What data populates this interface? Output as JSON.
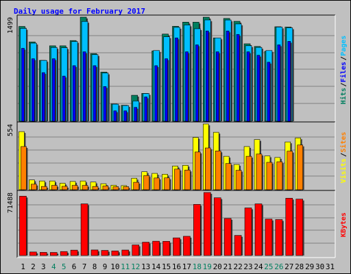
{
  "chart_data": {
    "type": "bar",
    "title": "Daily usage for February 2017",
    "categories": [
      "1",
      "2",
      "3",
      "4",
      "5",
      "6",
      "7",
      "8",
      "9",
      "10",
      "11",
      "12",
      "13",
      "14",
      "15",
      "16",
      "17",
      "18",
      "19",
      "20",
      "21",
      "22",
      "23",
      "24",
      "25",
      "26",
      "27",
      "28",
      "29",
      "30",
      "31"
    ],
    "weekend_days": [
      "4",
      "5",
      "11",
      "12",
      "18",
      "19",
      "25",
      "26"
    ],
    "colors": {
      "background": "#c0c0c0",
      "plot_background": "#c0c0c0",
      "title": "#0000ff",
      "hits": "#007f5f",
      "files": "#0000ff",
      "pages": "#00bfff",
      "visits": "#ffff00",
      "sites": "#ff8000",
      "kbytes": "#ff0000",
      "weekend_label": "#007f5f",
      "weekday_label": "#000000"
    },
    "panels": [
      {
        "id": "hits-files-pages",
        "max_label": "1499",
        "ymax": 1499,
        "legend": [
          {
            "text": "Hits",
            "color": "#007f5f"
          },
          {
            "text": "/",
            "color": "#000000"
          },
          {
            "text": "Files",
            "color": "#0000ff"
          },
          {
            "text": "/",
            "color": "#000000"
          },
          {
            "text": "Pages",
            "color": "#00bfff"
          }
        ],
        "series": [
          {
            "name": "Hits",
            "values": [
              1365,
              1142,
              877,
              1086,
              1086,
              1162,
              1499,
              974,
              708,
              249,
              230,
              374,
              401,
              1013,
              1255,
              1367,
              1427,
              1426,
              1498,
              1200,
              1480,
              1439,
              1115,
              1077,
              1007,
              1361,
              1356,
              0,
              0,
              0,
              0
            ]
          },
          {
            "name": "Files",
            "values": [
              1050,
              900,
              700,
              900,
              650,
              800,
              1000,
              800,
              500,
              150,
              150,
              200,
              350,
              800,
              900,
              1200,
              1000,
              1100,
              1300,
              1000,
              1300,
              1250,
              1000,
              950,
              850,
              1100,
              1150,
              0,
              0,
              0,
              0
            ]
          },
          {
            "name": "Pages",
            "values": [
              1337,
              1124,
              876,
              1062,
              1058,
              1148,
              1437,
              959,
              695,
              246,
              226,
              292,
              399,
              1018,
              1216,
              1352,
              1386,
              1332,
              1459,
              1200,
              1458,
              1401,
              1087,
              1063,
              1018,
              1356,
              1345,
              0,
              0,
              0,
              0
            ]
          }
        ]
      },
      {
        "id": "visits-sites",
        "max_label": "554",
        "ymax": 554,
        "legend": [
          {
            "text": "Visits",
            "color": "#ffff00"
          },
          {
            "text": "/",
            "color": "#000000"
          },
          {
            "text": "Sites",
            "color": "#ff8000"
          }
        ],
        "series": [
          {
            "name": "Visits",
            "values": [
              490,
              83,
              74,
              74,
              55,
              70,
              74,
              65,
              51,
              38,
              35,
              97,
              152,
              138,
              131,
              200,
              206,
              441,
              554,
              484,
              282,
              213,
              364,
              423,
              285,
              272,
              403,
              437,
              0,
              0,
              0
            ]
          },
          {
            "name": "Sites",
            "values": [
              364,
              47,
              28,
              37,
              29,
              37,
              37,
              28,
              32,
              26,
              26,
              63,
              120,
              99,
              100,
              174,
              166,
              318,
              352,
              327,
              221,
              164,
              282,
              301,
              231,
              236,
              325,
              377,
              0,
              0,
              0
            ]
          }
        ]
      },
      {
        "id": "kbytes",
        "max_label": "71488",
        "ymax": 71488,
        "legend": [
          {
            "text": "KBytes",
            "color": "#ff0000"
          }
        ],
        "series": [
          {
            "name": "KBytes",
            "values": [
              67296,
              3985,
              3567,
              3481,
              4504,
              6102,
              58596,
              6284,
              5781,
              5218,
              6200,
              11984,
              15101,
              16203,
              16103,
              20022,
              21802,
              57998,
              71488,
              65498,
              42009,
              22802,
              53988,
              58599,
              41296,
              40795,
              64997,
              63988,
              0,
              0,
              0
            ]
          }
        ]
      }
    ]
  }
}
